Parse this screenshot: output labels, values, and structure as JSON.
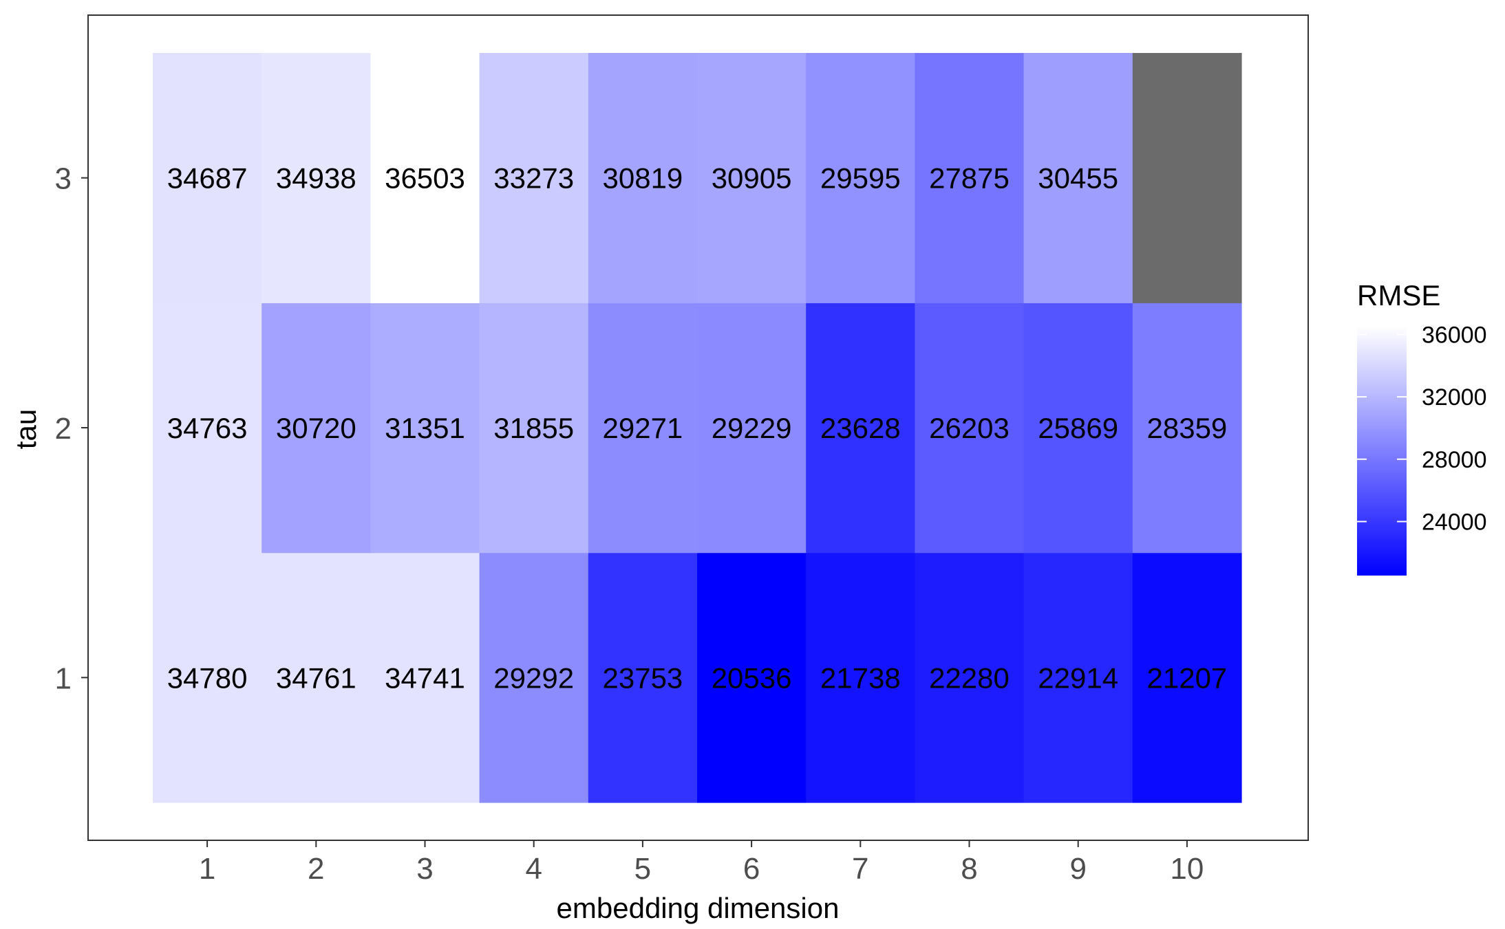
{
  "chart_data": {
    "type": "heatmap",
    "xlabel": "embedding dimension",
    "ylabel": "tau",
    "x_categories": [
      "1",
      "2",
      "3",
      "4",
      "5",
      "6",
      "7",
      "8",
      "9",
      "10"
    ],
    "y_categories": [
      "1",
      "2",
      "3"
    ],
    "rows": [
      {
        "tau": "1",
        "values": [
          34780,
          34761,
          34741,
          29292,
          23753,
          20536,
          21738,
          22280,
          22914,
          21207
        ]
      },
      {
        "tau": "2",
        "values": [
          34763,
          30720,
          31351,
          31855,
          29271,
          29229,
          23628,
          26203,
          25869,
          28359
        ]
      },
      {
        "tau": "3",
        "values": [
          34687,
          34938,
          36503,
          33273,
          30819,
          30905,
          29595,
          27875,
          30455,
          null
        ]
      }
    ],
    "legend": {
      "title": "RMSE",
      "breaks": [
        "36000",
        "32000",
        "28000",
        "24000"
      ],
      "min": 20536,
      "max": 36503,
      "low_color": "#0000ff",
      "high_color": "#ffffff",
      "na_color": "#6b6b6b",
      "placement": "right"
    },
    "grid": false
  }
}
